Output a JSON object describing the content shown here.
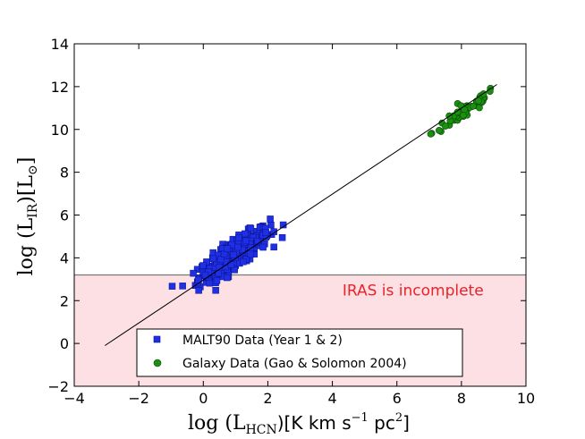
{
  "chart_data": {
    "type": "scatter",
    "title": "",
    "xlabel": {
      "pre": "log (L",
      "sub": "HCN",
      "post": ")[K km s",
      "sup1": "−1",
      "mid": " pc",
      "sup2": "2",
      "end": "]"
    },
    "ylabel": {
      "pre": "log (L",
      "sub": "IR",
      "post": ")[L",
      "sub2": "⊙",
      "end": "]"
    },
    "xlim": [
      -4,
      10
    ],
    "ylim": [
      -2,
      14
    ],
    "xticks": [
      -4,
      -2,
      0,
      2,
      4,
      6,
      8,
      10
    ],
    "xtick_labels": [
      "−4",
      "−2",
      "0",
      "2",
      "4",
      "6",
      "8",
      "10"
    ],
    "yticks": [
      -2,
      0,
      2,
      4,
      6,
      8,
      10,
      12,
      14
    ],
    "ytick_labels": [
      "−2",
      "0",
      "2",
      "4",
      "6",
      "8",
      "10",
      "12",
      "14"
    ],
    "grid": false,
    "legend_position": "bottom-center",
    "series": [
      {
        "name": "MALT90 Data (Year 1 & 2)",
        "marker": "square",
        "color": "#1f2fe6",
        "center": [
          0.95,
          4.15
        ],
        "spread": [
          0.55,
          0.6
        ],
        "slope": 0.97,
        "count": 330
      },
      {
        "name": "Galaxy Data (Gao & Solomon 2004)",
        "marker": "circle",
        "color": "#1a8f10",
        "center": [
          8.1,
          10.85
        ],
        "spread": [
          0.5,
          0.35
        ],
        "slope": 1.0,
        "count": 65
      }
    ],
    "fit_line": {
      "x": [
        -3.05,
        9.1
      ],
      "y": [
        -0.1,
        12.1
      ],
      "color": "#000000"
    },
    "shaded_region": {
      "y": [
        -2,
        3.2
      ],
      "color": "#fde0e4",
      "edge": "#7a7a7a"
    },
    "annotation": {
      "text": "IRAS is incomplete",
      "x": 6.5,
      "y": 2.25,
      "color": "#e8232a"
    }
  }
}
